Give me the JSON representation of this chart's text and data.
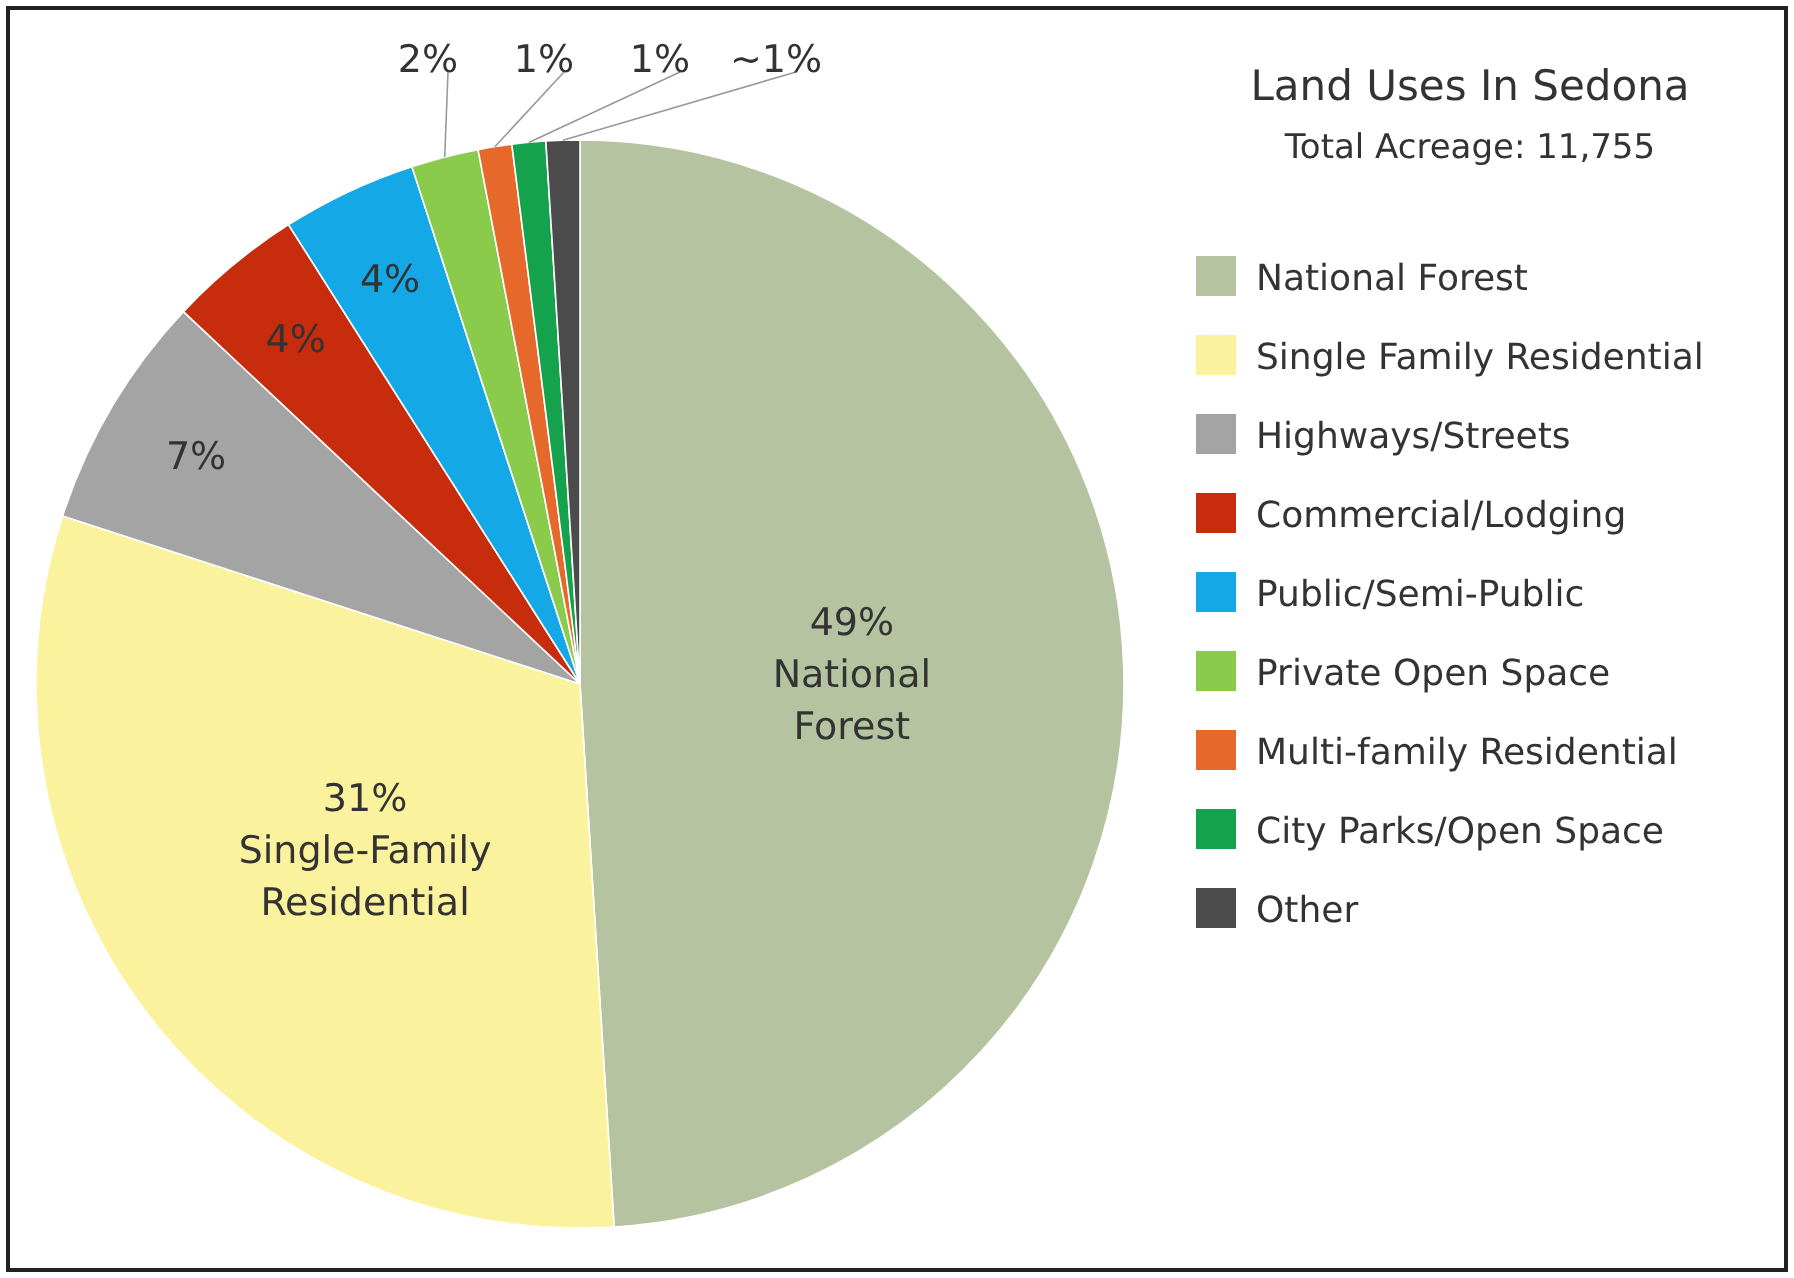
{
  "chart_data": {
    "type": "pie",
    "title": "Land Uses In Sedona",
    "subtitle": "Total Acreage: 11,755",
    "categories": [
      "National Forest",
      "Single Family Residential",
      "Highways/Streets",
      "Commercial/Lodging",
      "Public/Semi-Public",
      "Private Open Space",
      "Multi-family Residential",
      "City Parks/Open Space",
      "Other"
    ],
    "values": [
      49,
      31,
      7,
      4,
      4,
      2,
      1,
      1,
      1
    ],
    "value_labels": [
      "49%\nNational\nForest",
      "31%\nSingle-Family\nResidential",
      "7%",
      "4%",
      "4%",
      "2%",
      "1%",
      "1%",
      "~1%"
    ],
    "colors": [
      "#b5c3a1",
      "#fbf29e",
      "#a4a4a4",
      "#c72c0c",
      "#14a8e6",
      "#8bcb4b",
      "#e6682b",
      "#14a34c",
      "#4b4b4b"
    ],
    "legend": "right"
  }
}
